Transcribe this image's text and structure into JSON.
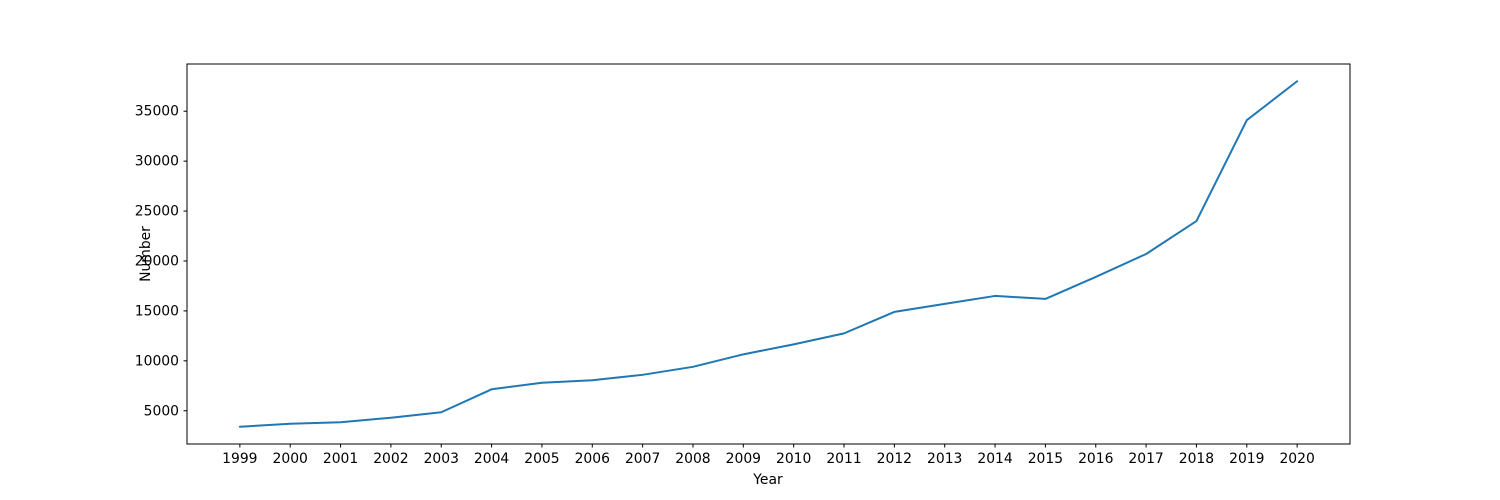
{
  "chart_data": {
    "type": "line",
    "title": "",
    "xlabel": "Year",
    "ylabel": "Number",
    "x": [
      1999,
      2000,
      2001,
      2002,
      2003,
      2004,
      2005,
      2006,
      2007,
      2008,
      2009,
      2010,
      2011,
      2012,
      2013,
      2014,
      2015,
      2016,
      2017,
      2018,
      2019,
      2020
    ],
    "series": [
      {
        "name": "Number",
        "values": [
          3400,
          3700,
          3850,
          4300,
          4850,
          7150,
          7800,
          8050,
          8600,
          9400,
          10650,
          11650,
          12750,
          14900,
          15700,
          16500,
          16200,
          18400,
          20700,
          24000,
          34100,
          38000
        ]
      }
    ],
    "line_color": "#1f77b4",
    "axis_color": "#000000",
    "background_color": "#ffffff",
    "xlim": [
      1997.95,
      2021.05
    ],
    "ylim": [
      1670,
      39730
    ],
    "xticks": [
      1999,
      2000,
      2001,
      2002,
      2003,
      2004,
      2005,
      2006,
      2007,
      2008,
      2009,
      2010,
      2011,
      2012,
      2013,
      2014,
      2015,
      2016,
      2017,
      2018,
      2019,
      2020
    ],
    "yticks": [
      5000,
      10000,
      15000,
      20000,
      25000,
      30000,
      35000
    ],
    "grid": false,
    "legend": null
  }
}
